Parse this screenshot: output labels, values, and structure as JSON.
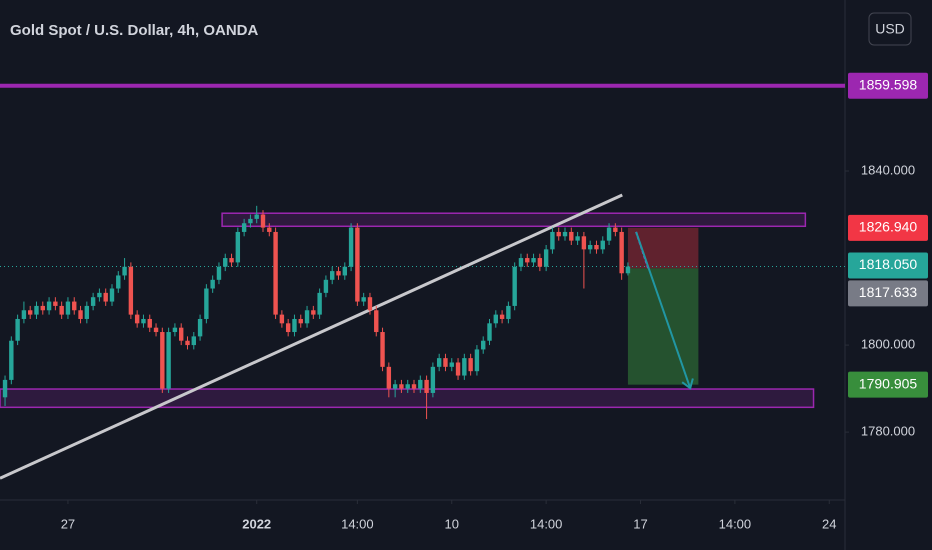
{
  "chart_data": {
    "type": "candlestick",
    "title": "Gold Spot / U.S. Dollar, 4h, OANDA",
    "currency": "USD",
    "up_color": "#26a69a",
    "down_color": "#ef5350",
    "xlim": [
      -0.8,
      133.5
    ],
    "xticks": [
      {
        "value": 10,
        "label": "27"
      },
      {
        "value": 40,
        "label": "2022"
      },
      {
        "value": 56,
        "label": "14:00"
      },
      {
        "value": 71,
        "label": "10"
      },
      {
        "value": 86,
        "label": "14:00"
      },
      {
        "value": 101,
        "label": "17"
      },
      {
        "value": 116,
        "label": "14:00"
      },
      {
        "value": 131,
        "label": "24"
      }
    ],
    "ylim": [
      1764.4,
      1879.3
    ],
    "yticks": [
      {
        "value": 1780,
        "label": "1780.000"
      },
      {
        "value": 1800,
        "label": "1800.000"
      },
      {
        "value": 1840,
        "label": "1840.000"
      }
    ],
    "ohlc": [
      [
        1788,
        1793,
        1786,
        1792
      ],
      [
        1792,
        1802,
        1791,
        1801
      ],
      [
        1801,
        1807,
        1800,
        1806
      ],
      [
        1806,
        1810,
        1805,
        1808
      ],
      [
        1808,
        1809,
        1806,
        1807
      ],
      [
        1807,
        1810,
        1806,
        1809
      ],
      [
        1809,
        1810,
        1807,
        1808
      ],
      [
        1808,
        1811,
        1807,
        1810
      ],
      [
        1810,
        1811,
        1808,
        1809
      ],
      [
        1809,
        1810,
        1806,
        1807
      ],
      [
        1807,
        1811,
        1806,
        1810
      ],
      [
        1810,
        1811,
        1807,
        1808
      ],
      [
        1808,
        1809,
        1805,
        1806
      ],
      [
        1806,
        1810,
        1805,
        1809
      ],
      [
        1809,
        1812,
        1808,
        1811
      ],
      [
        1811,
        1813,
        1810,
        1812
      ],
      [
        1812,
        1813,
        1809,
        1810
      ],
      [
        1810,
        1814,
        1809,
        1813
      ],
      [
        1813,
        1817,
        1812,
        1816
      ],
      [
        1816,
        1820,
        1815,
        1818
      ],
      [
        1818,
        1819,
        1806,
        1807
      ],
      [
        1807,
        1808,
        1804,
        1805
      ],
      [
        1805,
        1807,
        1804,
        1806
      ],
      [
        1806,
        1807,
        1803,
        1804
      ],
      [
        1804,
        1805,
        1802,
        1803
      ],
      [
        1803,
        1804,
        1789,
        1790
      ],
      [
        1790,
        1804,
        1789,
        1803
      ],
      [
        1803,
        1805,
        1802,
        1804
      ],
      [
        1804,
        1805,
        1800,
        1801
      ],
      [
        1801,
        1802,
        1799,
        1800
      ],
      [
        1800,
        1803,
        1799,
        1802
      ],
      [
        1802,
        1807,
        1801,
        1806
      ],
      [
        1806,
        1814,
        1805,
        1813
      ],
      [
        1813,
        1816,
        1812,
        1815
      ],
      [
        1815,
        1819,
        1814,
        1818
      ],
      [
        1818,
        1821,
        1817,
        1820
      ],
      [
        1820,
        1821,
        1818,
        1819
      ],
      [
        1819,
        1827,
        1818,
        1826
      ],
      [
        1826,
        1829,
        1825,
        1828
      ],
      [
        1828,
        1830,
        1827,
        1829
      ],
      [
        1829,
        1832,
        1828,
        1830
      ],
      [
        1830,
        1831,
        1826,
        1827
      ],
      [
        1827,
        1828,
        1825,
        1826
      ],
      [
        1826,
        1827,
        1806,
        1807
      ],
      [
        1807,
        1808,
        1804,
        1805
      ],
      [
        1805,
        1806,
        1802,
        1803
      ],
      [
        1803,
        1807,
        1802,
        1806
      ],
      [
        1806,
        1807,
        1804,
        1805
      ],
      [
        1805,
        1809,
        1804,
        1808
      ],
      [
        1808,
        1809,
        1806,
        1807
      ],
      [
        1807,
        1813,
        1806,
        1812
      ],
      [
        1812,
        1816,
        1811,
        1815
      ],
      [
        1815,
        1818,
        1814,
        1817
      ],
      [
        1817,
        1818,
        1815,
        1816
      ],
      [
        1816,
        1819,
        1815,
        1818
      ],
      [
        1818,
        1828,
        1817,
        1827
      ],
      [
        1827,
        1828,
        1809,
        1810
      ],
      [
        1810,
        1812,
        1809,
        1811
      ],
      [
        1811,
        1812,
        1807,
        1808
      ],
      [
        1808,
        1809,
        1802,
        1803
      ],
      [
        1803,
        1804,
        1794,
        1795
      ],
      [
        1795,
        1796,
        1788,
        1790
      ],
      [
        1790,
        1792,
        1788,
        1791
      ],
      [
        1791,
        1792,
        1789,
        1790
      ],
      [
        1790,
        1792,
        1789,
        1791
      ],
      [
        1791,
        1792,
        1789,
        1790
      ],
      [
        1790,
        1793,
        1789,
        1792
      ],
      [
        1792,
        1793,
        1783,
        1789
      ],
      [
        1789,
        1796,
        1788,
        1795
      ],
      [
        1795,
        1798,
        1794,
        1797
      ],
      [
        1797,
        1798,
        1794,
        1795
      ],
      [
        1795,
        1797,
        1794,
        1796
      ],
      [
        1796,
        1797,
        1792,
        1793
      ],
      [
        1793,
        1798,
        1792,
        1797
      ],
      [
        1797,
        1798,
        1793,
        1794
      ],
      [
        1794,
        1800,
        1793,
        1799
      ],
      [
        1799,
        1802,
        1798,
        1801
      ],
      [
        1801,
        1806,
        1800,
        1805
      ],
      [
        1805,
        1808,
        1804,
        1807
      ],
      [
        1807,
        1808,
        1805,
        1806
      ],
      [
        1806,
        1810,
        1805,
        1809
      ],
      [
        1809,
        1819,
        1808,
        1818
      ],
      [
        1818,
        1821,
        1817,
        1820
      ],
      [
        1820,
        1821,
        1818,
        1819
      ],
      [
        1819,
        1821,
        1818,
        1820
      ],
      [
        1820,
        1821,
        1817,
        1818
      ],
      [
        1818,
        1823,
        1817,
        1822
      ],
      [
        1822,
        1827,
        1821,
        1826
      ],
      [
        1826,
        1827,
        1824,
        1825
      ],
      [
        1825,
        1827,
        1824,
        1826
      ],
      [
        1826,
        1827,
        1823,
        1824
      ],
      [
        1824,
        1826,
        1823,
        1825
      ],
      [
        1825,
        1826,
        1813,
        1822
      ],
      [
        1822,
        1824,
        1821,
        1823
      ],
      [
        1823,
        1824,
        1821,
        1822
      ],
      [
        1822,
        1825,
        1821,
        1824
      ],
      [
        1824,
        1828,
        1823,
        1827
      ],
      [
        1827,
        1828,
        1825,
        1826
      ],
      [
        1826,
        1827,
        1815,
        1816.5
      ],
      [
        1816.5,
        1819,
        1816,
        1818.05
      ]
    ],
    "horizontal_line": {
      "value": 1859.598,
      "label": "1859.598",
      "color": "#9c27b0"
    },
    "last_price": {
      "value": 1818.05,
      "label": "1818.050",
      "color": "#26a69a"
    },
    "zones": [
      {
        "x": [
          34.5,
          127.2
        ],
        "y": [
          1827.3,
          1830.3
        ],
        "color": "#9c27b0"
      },
      {
        "x": [
          -0.8,
          128.5
        ],
        "y": [
          1785.7,
          1789.9
        ],
        "color": "#9c27b0"
      }
    ],
    "trendline": {
      "x": [
        -0.8,
        98.1
      ],
      "y": [
        1769.4,
        1834.5
      ],
      "color": "#c8c8cc"
    },
    "position": {
      "x": [
        99.0,
        110.2
      ],
      "stop": {
        "value": 1826.94,
        "label": "1826.940",
        "color": "#f23645"
      },
      "entry": {
        "value": 1817.633,
        "label": "1817.633",
        "color": "#787b86"
      },
      "target": {
        "value": 1790.905,
        "label": "1790.905",
        "color": "#388e3c"
      }
    },
    "arrow": {
      "x": [
        100.3,
        108.9
      ],
      "y": [
        1826,
        1790.1
      ],
      "color": "#2196a3"
    },
    "dashed_segment": {
      "x": [
        100.3,
        102.2
      ],
      "y": [
        1826,
        1817.7
      ],
      "color": "#b040c8"
    }
  }
}
